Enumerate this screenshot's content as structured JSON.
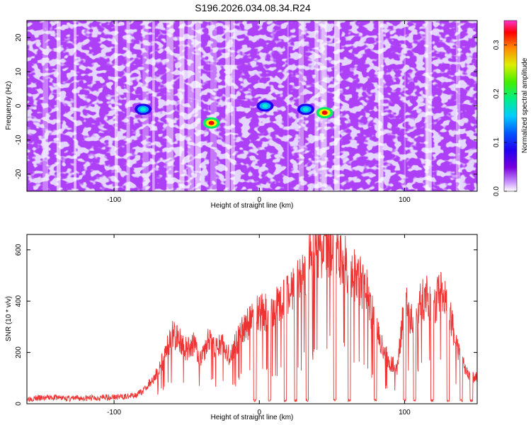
{
  "title": "S196.2026.034.08.34.R24",
  "chart_data": [
    {
      "type": "heatmap",
      "xlabel": "Height of straight line (km)",
      "ylabel": "Frequency (Hz)",
      "xlim": [
        -160,
        150
      ],
      "ylim": [
        -25,
        25
      ],
      "x_ticks": [
        -100,
        0,
        100
      ],
      "y_ticks": [
        -20,
        -10,
        0,
        10,
        20
      ],
      "grid": false,
      "colorbar": {
        "label": "Normalized spectral amplitude",
        "range": [
          0,
          0.35
        ],
        "ticks": [
          0.0,
          0.1,
          0.2,
          0.3
        ]
      },
      "hot_spots": [
        {
          "x": 45,
          "y": -2,
          "value": 0.33
        },
        {
          "x": -33,
          "y": -5,
          "value": 0.3
        },
        {
          "x": 32,
          "y": -1,
          "value": 0.15
        },
        {
          "x": -80,
          "y": -1,
          "value": 0.12
        },
        {
          "x": 4,
          "y": 0,
          "value": 0.11
        }
      ]
    },
    {
      "type": "line",
      "xlabel": "Height of straight line (km)",
      "ylabel": "SNR (10 * v/v)",
      "xlim": [
        -160,
        150
      ],
      "ylim": [
        0,
        660
      ],
      "x_ticks": [
        -100,
        0,
        100
      ],
      "y_ticks": [
        0,
        200,
        400,
        600
      ],
      "color": "#ee3333",
      "grid": false,
      "x": [
        -160,
        -150,
        -140,
        -130,
        -120,
        -110,
        -100,
        -90,
        -85,
        -80,
        -75,
        -70,
        -65,
        -60,
        -55,
        -50,
        -45,
        -40,
        -35,
        -30,
        -25,
        -20,
        -15,
        -10,
        -5,
        0,
        5,
        10,
        15,
        20,
        25,
        30,
        35,
        40,
        45,
        50,
        55,
        60,
        65,
        70,
        75,
        80,
        85,
        90,
        95,
        100,
        105,
        110,
        115,
        120,
        125,
        130,
        135,
        140,
        145,
        150
      ],
      "y": [
        20,
        22,
        25,
        20,
        22,
        24,
        26,
        28,
        35,
        50,
        85,
        120,
        190,
        270,
        245,
        210,
        230,
        180,
        260,
        210,
        240,
        180,
        250,
        300,
        320,
        360,
        350,
        380,
        390,
        420,
        450,
        480,
        560,
        600,
        640,
        620,
        580,
        550,
        500,
        470,
        420,
        300,
        210,
        160,
        140,
        400,
        320,
        390,
        420,
        380,
        430,
        370,
        250,
        160,
        110,
        100
      ]
    }
  ]
}
